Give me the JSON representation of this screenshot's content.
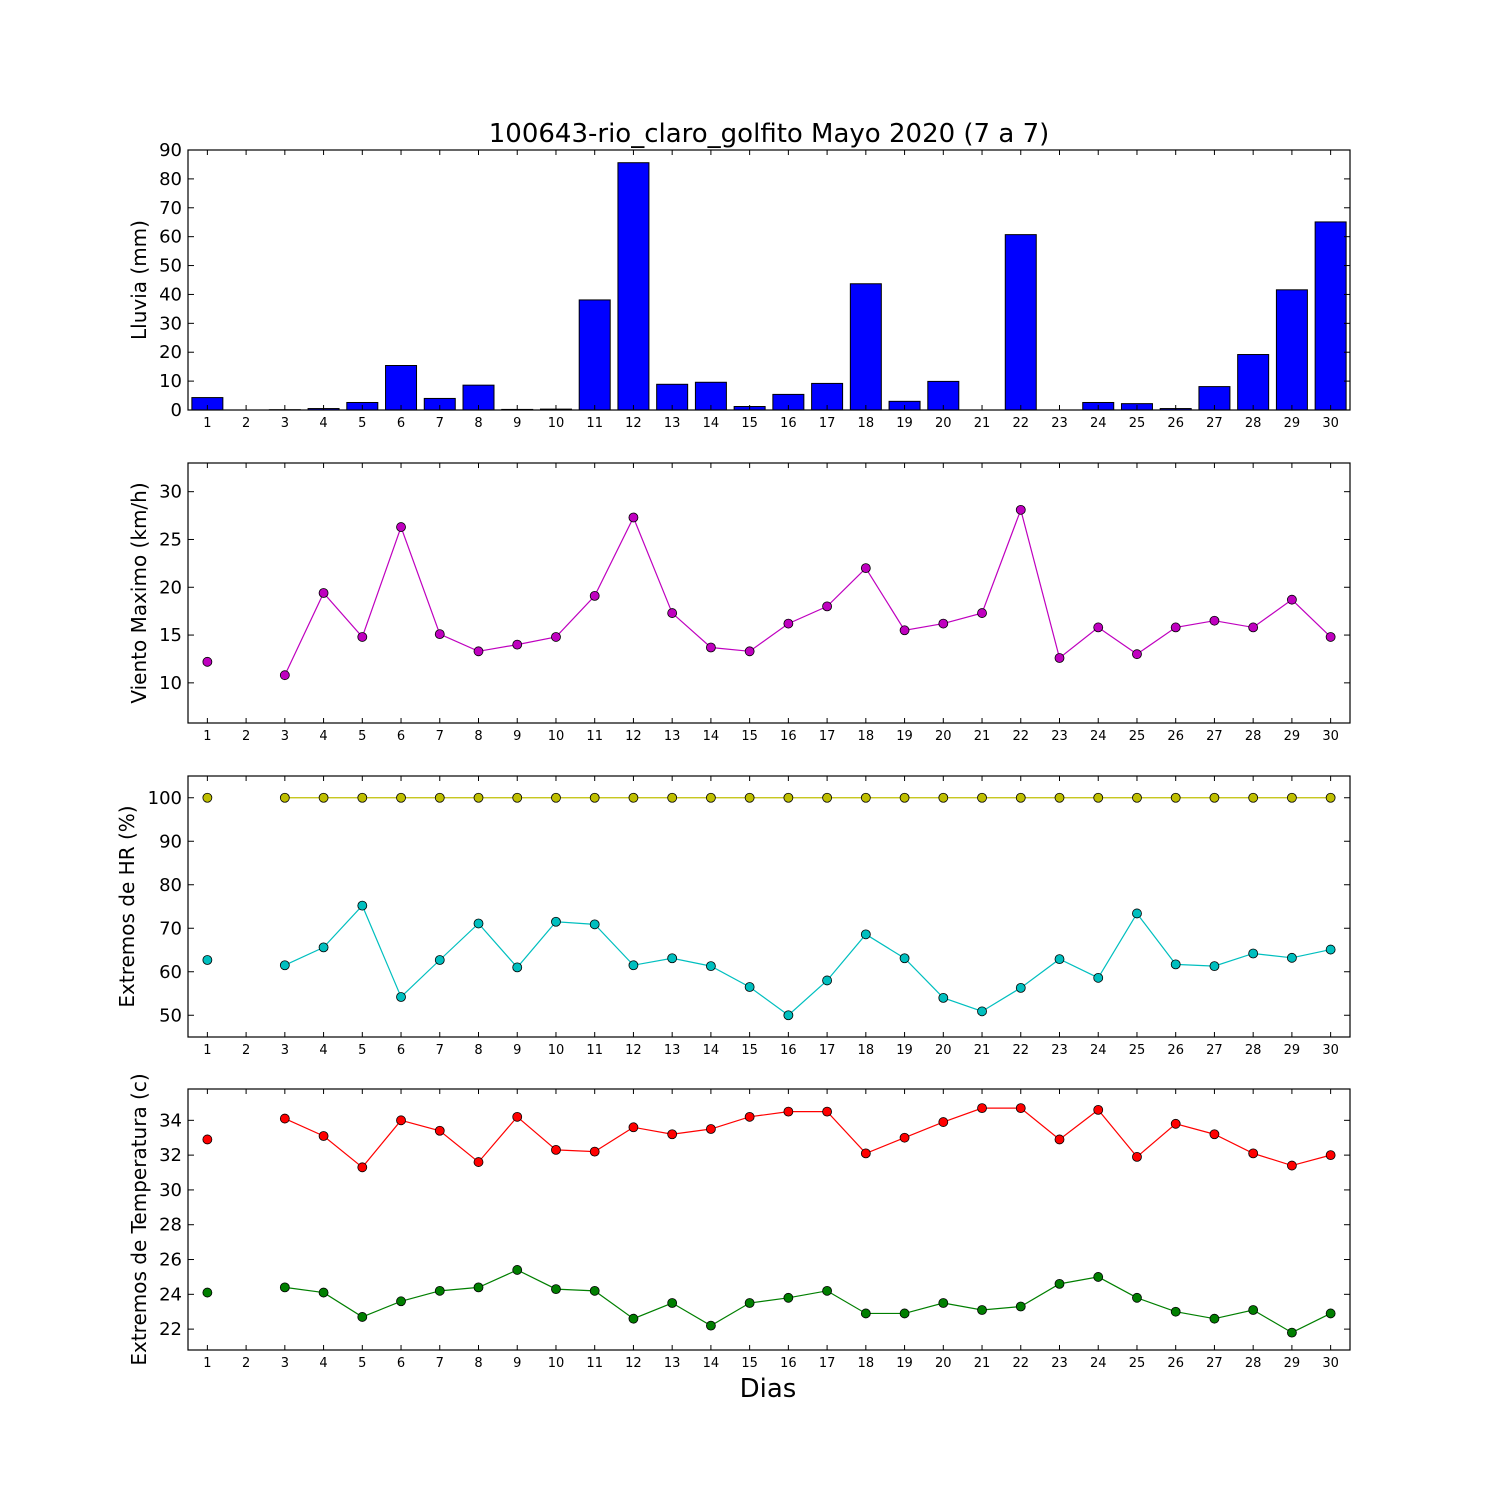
{
  "chart_data": [
    {
      "type": "bar",
      "title": "100643-rio_claro_golfito Mayo 2020  (7 a 7)",
      "ylabel": "Lluvia (mm)",
      "xlabel": "",
      "x": [
        1,
        2,
        3,
        4,
        5,
        6,
        7,
        8,
        9,
        10,
        11,
        12,
        13,
        14,
        15,
        16,
        17,
        18,
        19,
        20,
        21,
        22,
        23,
        24,
        25,
        26,
        27,
        28,
        29,
        30
      ],
      "xlim": [
        0.5,
        30.5
      ],
      "ylim": [
        0,
        90
      ],
      "yticks": [
        0,
        10,
        20,
        30,
        40,
        50,
        60,
        70,
        80,
        90
      ],
      "series": [
        {
          "color": "#0000ff",
          "values": [
            4.3,
            0,
            0.1,
            0.5,
            2.6,
            15.4,
            4.0,
            8.6,
            0.2,
            0.3,
            38.1,
            85.6,
            8.9,
            9.6,
            1.2,
            5.4,
            9.2,
            43.7,
            3.0,
            9.9,
            0,
            60.7,
            0,
            2.6,
            2.2,
            0.5,
            8.1,
            19.2,
            41.6,
            65.1
          ]
        }
      ]
    },
    {
      "type": "line",
      "ylabel": "Viento Maximo (km/h)",
      "xlabel": "",
      "x": [
        1,
        2,
        3,
        4,
        5,
        6,
        7,
        8,
        9,
        10,
        11,
        12,
        13,
        14,
        15,
        16,
        17,
        18,
        19,
        20,
        21,
        22,
        23,
        24,
        25,
        26,
        27,
        28,
        29,
        30
      ],
      "xlim": [
        0.5,
        30.5
      ],
      "ylim": [
        5.8,
        33
      ],
      "yticks": [
        10,
        15,
        20,
        25,
        30
      ],
      "series": [
        {
          "color": "#bf00bf",
          "values": [
            12.2,
            null,
            10.8,
            19.4,
            14.8,
            26.3,
            15.1,
            13.3,
            14.0,
            14.8,
            19.1,
            27.3,
            17.3,
            13.7,
            13.3,
            16.2,
            18.0,
            22.0,
            15.5,
            16.2,
            17.3,
            28.1,
            12.6,
            15.8,
            13.0,
            15.8,
            16.5,
            15.8,
            18.7,
            14.8
          ]
        }
      ]
    },
    {
      "type": "line",
      "ylabel": "Extremos de HR (%)",
      "xlabel": "",
      "x": [
        1,
        2,
        3,
        4,
        5,
        6,
        7,
        8,
        9,
        10,
        11,
        12,
        13,
        14,
        15,
        16,
        17,
        18,
        19,
        20,
        21,
        22,
        23,
        24,
        25,
        26,
        27,
        28,
        29,
        30
      ],
      "xlim": [
        0.5,
        30.5
      ],
      "ylim": [
        45,
        105
      ],
      "yticks": [
        50,
        60,
        70,
        80,
        90,
        100
      ],
      "series": [
        {
          "color": "#bfbf00",
          "values": [
            100,
            null,
            100,
            100,
            100,
            100,
            100,
            100,
            100,
            100,
            100,
            100,
            100,
            100,
            100,
            100,
            100,
            100,
            100,
            100,
            100,
            100,
            100,
            100,
            100,
            100,
            100,
            100,
            100,
            100
          ]
        },
        {
          "color": "#00bfbf",
          "values": [
            62.7,
            null,
            61.5,
            65.6,
            75.2,
            54.2,
            62.7,
            71.1,
            61.0,
            71.5,
            70.9,
            61.5,
            63.1,
            61.3,
            56.5,
            50.0,
            58.0,
            68.6,
            63.1,
            54.0,
            50.9,
            56.3,
            62.9,
            58.6,
            73.4,
            61.7,
            61.3,
            64.2,
            63.2,
            65.1
          ]
        }
      ]
    },
    {
      "type": "line",
      "ylabel": "Extremos de Temperatura (c)",
      "xlabel": "Dias",
      "x": [
        1,
        2,
        3,
        4,
        5,
        6,
        7,
        8,
        9,
        10,
        11,
        12,
        13,
        14,
        15,
        16,
        17,
        18,
        19,
        20,
        21,
        22,
        23,
        24,
        25,
        26,
        27,
        28,
        29,
        30
      ],
      "xlim": [
        0.5,
        30.5
      ],
      "ylim": [
        20.8,
        35.8
      ],
      "yticks": [
        22,
        24,
        26,
        28,
        30,
        32,
        34
      ],
      "series": [
        {
          "color": "#ff0000",
          "values": [
            32.9,
            null,
            34.1,
            33.1,
            31.3,
            34.0,
            33.4,
            31.6,
            34.2,
            32.3,
            32.2,
            33.6,
            33.2,
            33.5,
            34.2,
            34.5,
            34.5,
            32.1,
            33.0,
            33.9,
            34.7,
            34.7,
            32.9,
            34.6,
            31.9,
            33.8,
            33.2,
            32.1,
            31.4,
            32.0
          ]
        },
        {
          "color": "#007f00",
          "values": [
            24.1,
            null,
            24.4,
            24.1,
            22.7,
            23.6,
            24.2,
            24.4,
            25.4,
            24.3,
            24.2,
            22.6,
            23.5,
            22.2,
            23.5,
            23.8,
            24.2,
            22.9,
            22.9,
            23.5,
            23.1,
            23.3,
            24.6,
            25.0,
            23.8,
            23.0,
            22.6,
            23.1,
            21.8,
            22.9
          ]
        }
      ]
    }
  ]
}
